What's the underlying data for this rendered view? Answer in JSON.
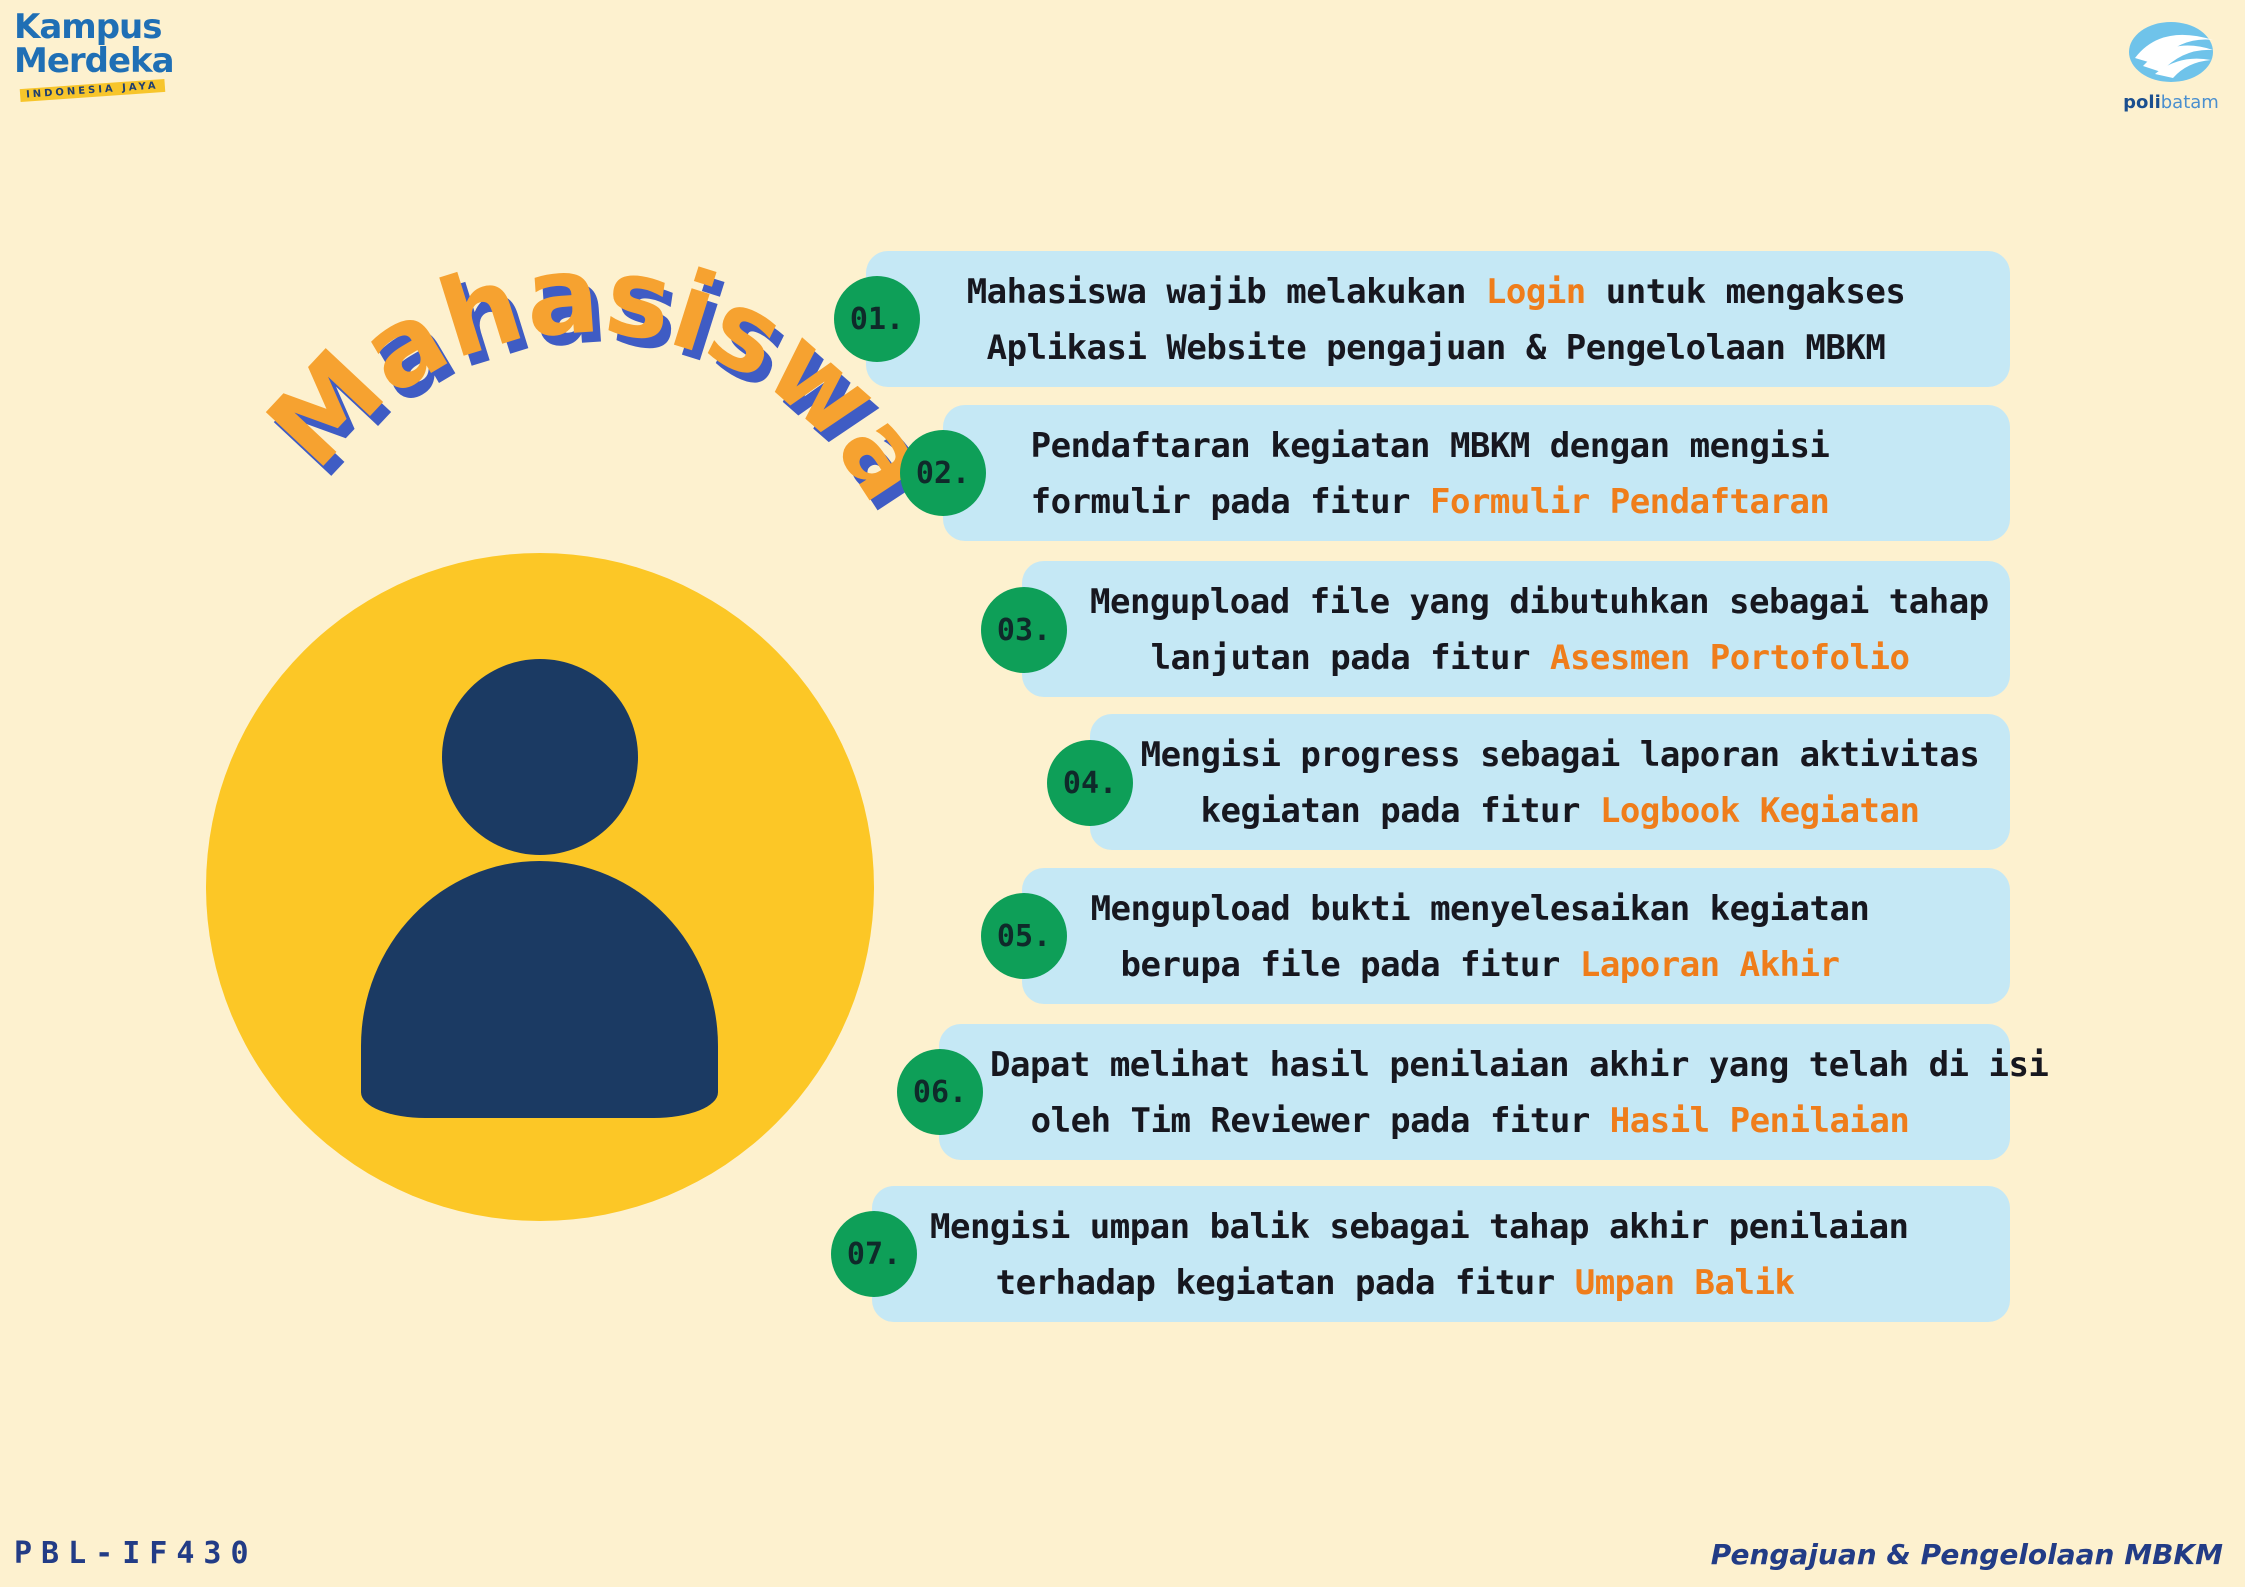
{
  "logos": {
    "kampus_merdeka": {
      "line1": "Kampus",
      "line2": "Merdeka",
      "subtitle": "INDONESIA JAYA"
    },
    "polibatam": {
      "prefix": "poli",
      "suffix": "batam"
    }
  },
  "title": "Mahasiswa",
  "colors": {
    "background": "#fdf1cf",
    "circle": "#fcc726",
    "avatar": "#1b3a63",
    "title_fill": "#f6a230",
    "title_shadow": "#3f5cc4",
    "step_bg": "#c5e8f5",
    "step_number_bg": "#0e9f58",
    "highlight": "#ef7d1b"
  },
  "steps": [
    {
      "number": "01.",
      "line1": "Mahasiswa wajib melakukan ",
      "line1_hl": "Login",
      "line1_after": " untuk mengakses",
      "line2": "Aplikasi Website pengajuan & Pengelolaan MBKM",
      "line2_hl": ""
    },
    {
      "number": "02.",
      "line1": "Pendaftaran kegiatan MBKM dengan mengisi",
      "line1_hl": "",
      "line1_after": "",
      "line2": "formulir pada fitur ",
      "line2_hl": "Formulir Pendaftaran"
    },
    {
      "number": "03.",
      "line1": "Mengupload file yang dibutuhkan sebagai tahap",
      "line1_hl": "",
      "line1_after": "",
      "line2": "lanjutan pada fitur ",
      "line2_hl": "Asesmen Portofolio"
    },
    {
      "number": "04.",
      "line1": "Mengisi progress sebagai laporan aktivitas",
      "line1_hl": "",
      "line1_after": "",
      "line2": "kegiatan pada fitur ",
      "line2_hl": "Logbook Kegiatan"
    },
    {
      "number": "05.",
      "line1": "Mengupload bukti menyelesaikan kegiatan",
      "line1_hl": "",
      "line1_after": "",
      "line2": "berupa file pada fitur ",
      "line2_hl": "Laporan Akhir"
    },
    {
      "number": "06.",
      "line1": "Dapat melihat hasil penilaian akhir yang telah di isi",
      "line1_hl": "",
      "line1_after": "",
      "line2": "oleh Tim Reviewer pada fitur ",
      "line2_hl": "Hasil Penilaian"
    },
    {
      "number": "07.",
      "line1": "Mengisi umpan balik sebagai tahap akhir penilaian",
      "line1_hl": "",
      "line1_after": "",
      "line2": "terhadap kegiatan pada fitur ",
      "line2_hl": "Umpan Balik"
    }
  ],
  "footer": {
    "left": "PBL-IF430",
    "right": "Pengajuan & Pengelolaan MBKM"
  }
}
